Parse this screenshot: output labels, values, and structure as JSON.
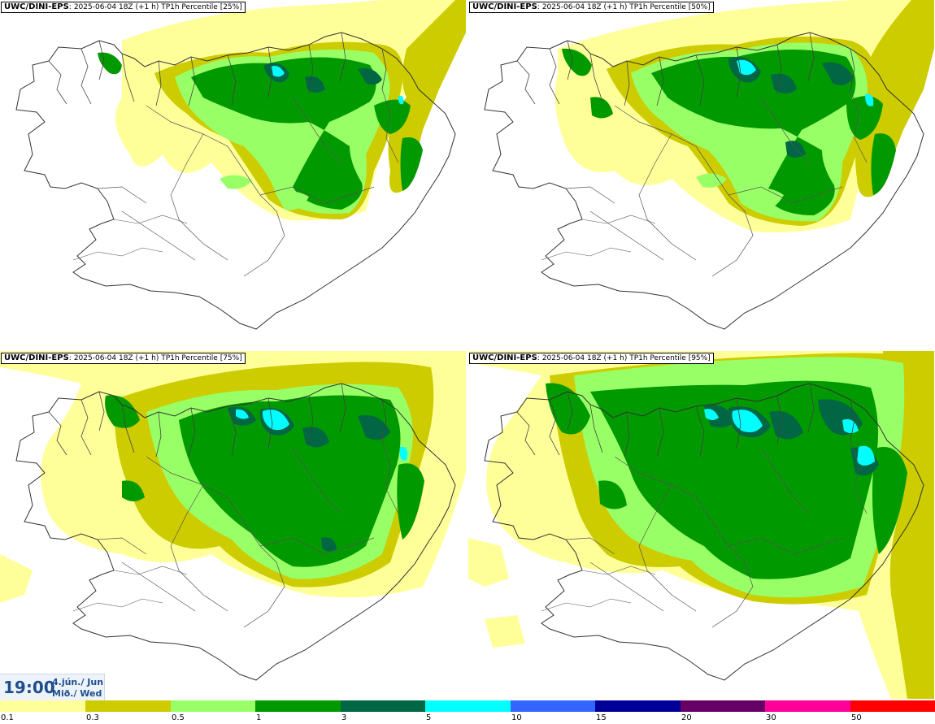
{
  "panels": [
    {
      "model": "UWC/DINI-EPS",
      "run": "2025-06-04 18Z",
      "step": "(+1 h)",
      "field": "TP1h Percentile [25%]"
    },
    {
      "model": "UWC/DINI-EPS",
      "run": "2025-06-04 18Z",
      "step": "(+1 h)",
      "field": "TP1h Percentile [50%]"
    },
    {
      "model": "UWC/DINI-EPS",
      "run": "2025-06-04 18Z",
      "step": "(+1 h)",
      "field": "TP1h Percentile [75%]"
    },
    {
      "model": "UWC/DINI-EPS",
      "run": "2025-06-04 18Z",
      "step": "(+1 h)",
      "field": "TP1h Percentile [95%]"
    }
  ],
  "valid_time": {
    "time": "19:00",
    "date_line1": "4.jún./ Jun",
    "date_line2": "Mið./ Wed"
  },
  "legend": {
    "labels": [
      "0.1",
      "0.3",
      "0.5",
      "1",
      "3",
      "5",
      "10",
      "15",
      "20",
      "30",
      "50"
    ],
    "colors": [
      "#ffff99",
      "#cccc00",
      "#99ff66",
      "#009900",
      "#006644",
      "#00ffff",
      "#3366ff",
      "#000099",
      "#660066",
      "#ff0099",
      "#ff0000"
    ]
  },
  "precip_colors": {
    "light": "#ffff99",
    "olive": "#cccc00",
    "pale_green": "#99ff66",
    "green": "#009900",
    "dark_green": "#006644",
    "cyan": "#00ffff"
  }
}
